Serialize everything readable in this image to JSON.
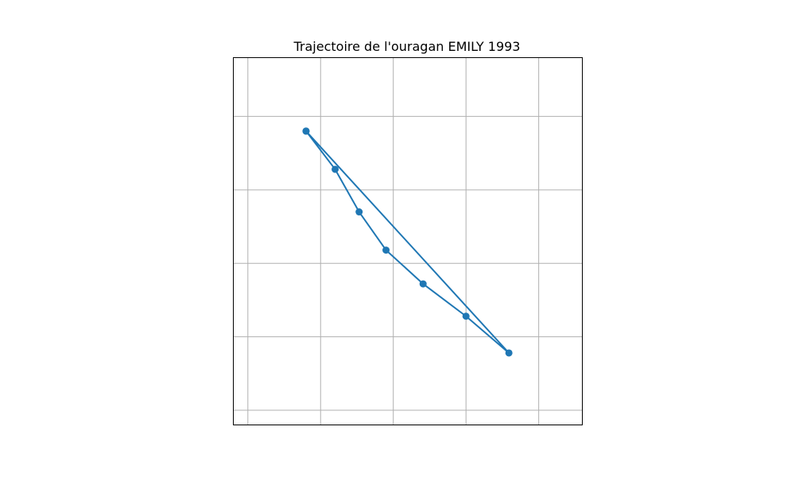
{
  "chart_data": {
    "type": "line",
    "title": "Trajectoire de l'ouragan EMILY 1993",
    "xlabel": "",
    "ylabel": "",
    "grid": true,
    "xlim": [
      0,
      4.8
    ],
    "ylim": [
      0,
      5
    ],
    "xgrid": [
      0.2,
      1.2,
      2.2,
      3.2,
      4.2
    ],
    "ygrid": [
      0.2,
      1.2,
      2.2,
      3.2,
      4.2
    ],
    "series": [
      {
        "color": "#1f77b4",
        "marker": "circle",
        "points": [
          {
            "x": 1.0,
            "y": 4.0
          },
          {
            "x": 1.4,
            "y": 3.48
          },
          {
            "x": 1.73,
            "y": 2.9
          },
          {
            "x": 2.1,
            "y": 2.38
          },
          {
            "x": 2.61,
            "y": 1.92
          },
          {
            "x": 3.2,
            "y": 1.48
          },
          {
            "x": 3.79,
            "y": 0.98
          },
          {
            "x": 1.0,
            "y": 4.0
          }
        ]
      }
    ]
  }
}
